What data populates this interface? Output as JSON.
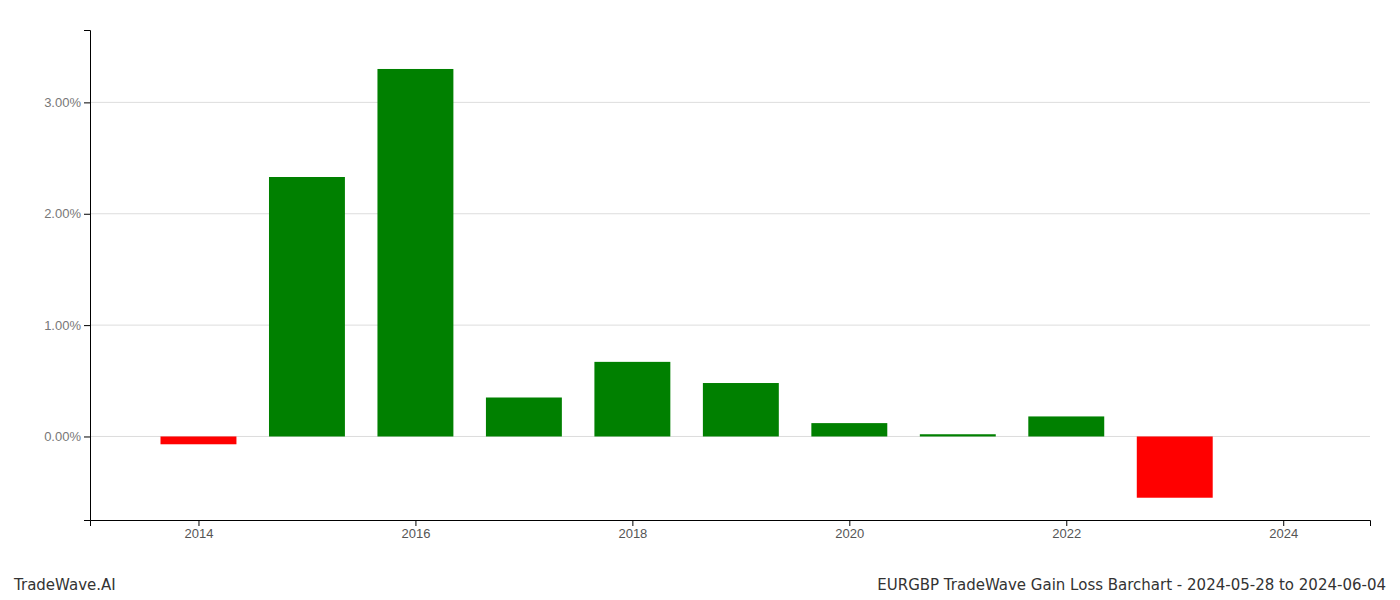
{
  "chart_data": {
    "type": "bar",
    "title": "EURGBP TradeWave Gain Loss Barchart - 2024-05-28 to 2024-06-04",
    "annotations": [
      "TradeWave.AI"
    ],
    "x": [
      2014,
      2015,
      2016,
      2017,
      2018,
      2019,
      2020,
      2021,
      2022,
      2023
    ],
    "values": [
      -0.07,
      2.33,
      3.3,
      0.35,
      0.67,
      0.48,
      0.12,
      0.02,
      0.18,
      -0.55
    ],
    "colors": [
      "red",
      "green",
      "green",
      "green",
      "green",
      "green",
      "green",
      "green",
      "green",
      "red"
    ],
    "xlim": [
      2013.0,
      2024.8
    ],
    "xticks": [
      2014,
      2016,
      2018,
      2020,
      2022,
      2024
    ],
    "ylim": [
      -0.75,
      3.65
    ],
    "yticks": [
      {
        "value": 0.0,
        "label": "0.00%"
      },
      {
        "value": 1.0,
        "label": "1.00%"
      },
      {
        "value": 2.0,
        "label": "2.00%"
      },
      {
        "value": 3.0,
        "label": "3.00%"
      }
    ],
    "grid": true
  }
}
